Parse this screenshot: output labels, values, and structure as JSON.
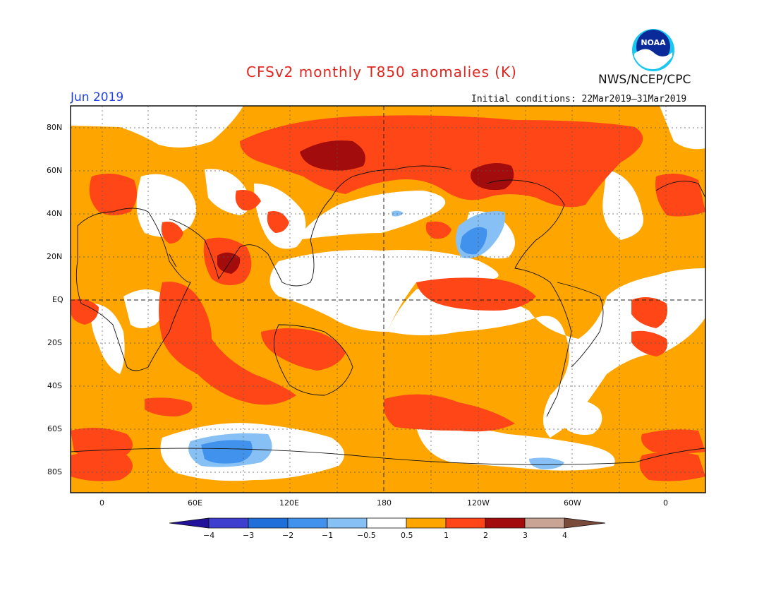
{
  "title": "CFSv2 monthly T850 anomalies (K)",
  "org_label": "NWS/NCEP/CPC",
  "logo_text": "NOAA",
  "month_label": "Jun 2019",
  "initial_conditions": "Initial conditions: 22Mar2019–31Mar2019",
  "lat_labels": [
    "80N",
    "60N",
    "40N",
    "20N",
    "EQ",
    "20S",
    "40S",
    "60S",
    "80S"
  ],
  "lon_labels": [
    "0",
    "60E",
    "120E",
    "180",
    "120W",
    "60W",
    "0"
  ],
  "colorbar": {
    "labels": [
      "−4",
      "−3",
      "−2",
      "−1",
      "−0.5",
      "0.5",
      "1",
      "2",
      "3",
      "4"
    ],
    "colors": [
      "#22129a",
      "#3f3fcf",
      "#1e6fd9",
      "#4192ec",
      "#86c0f5",
      "#ffffff",
      "#ffa500",
      "#ff4616",
      "#a30c0c",
      "#c9a394",
      "#7a4a3a"
    ]
  },
  "colors": {
    "warm1": "#ffa500",
    "warm2": "#ff4616",
    "warm3": "#a30c0c",
    "cool1": "#86c0f5",
    "cool2": "#4192ec"
  }
}
